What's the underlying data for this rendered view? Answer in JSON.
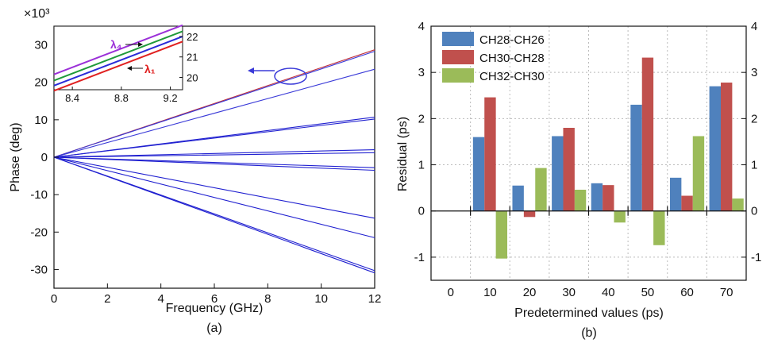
{
  "chart_data": [
    {
      "type": "line",
      "panel_label": "(a)",
      "xlabel": "Frequency (GHz)",
      "ylabel": "Phase (deg)",
      "xlim": [
        0,
        12
      ],
      "ylim": [
        -35,
        35
      ],
      "y_multiplier": "×10³",
      "xticks": [
        0,
        2,
        4,
        6,
        8,
        10,
        12
      ],
      "yticks": [
        -30,
        -20,
        -10,
        0,
        10,
        20,
        30
      ],
      "xtick_labels": [
        "0",
        "2",
        "4",
        "6",
        "8",
        "10",
        "12"
      ],
      "ytick_labels": [
        "-30",
        "-20",
        "-10",
        "0",
        "10",
        "20",
        "30"
      ],
      "series": [
        {
          "color": "#c0303a",
          "x": [
            0,
            12
          ],
          "y": [
            0,
            28.7
          ]
        },
        {
          "color": "#3a3ad8",
          "x": [
            0,
            12
          ],
          "y": [
            0,
            28.3
          ]
        },
        {
          "color": "#3a3ad8",
          "x": [
            0,
            12
          ],
          "y": [
            0,
            23.5
          ]
        },
        {
          "color": "#2020d0",
          "x": [
            0,
            12
          ],
          "y": [
            0,
            10.7
          ]
        },
        {
          "color": "#2020d0",
          "x": [
            0,
            12
          ],
          "y": [
            0,
            10.2
          ]
        },
        {
          "color": "#2020d0",
          "x": [
            0,
            12
          ],
          "y": [
            0,
            2.0
          ]
        },
        {
          "color": "#2020d0",
          "x": [
            0,
            12
          ],
          "y": [
            0,
            1.2
          ]
        },
        {
          "color": "#2020d0",
          "x": [
            0,
            12
          ],
          "y": [
            0,
            -2.8
          ]
        },
        {
          "color": "#2020d0",
          "x": [
            0,
            12
          ],
          "y": [
            0,
            -3.5
          ]
        },
        {
          "color": "#2020d0",
          "x": [
            0,
            12
          ],
          "y": [
            0,
            -16.3
          ]
        },
        {
          "color": "#2020d0",
          "x": [
            0,
            12
          ],
          "y": [
            0,
            -21.5
          ]
        },
        {
          "color": "#2020d0",
          "x": [
            0,
            12
          ],
          "y": [
            0,
            -30.3
          ]
        },
        {
          "color": "#2020d0",
          "x": [
            0,
            12
          ],
          "y": [
            0,
            -30.9
          ]
        }
      ],
      "inset": {
        "xlim": [
          8.25,
          9.3
        ],
        "ylim": [
          19.4,
          22.5
        ],
        "xtick_labels": [
          "8.4",
          "8.8",
          "9.2"
        ],
        "xticks": [
          8.4,
          8.8,
          9.2
        ],
        "ytick_labels": [
          "20",
          "21",
          "22"
        ],
        "yticks": [
          20,
          21,
          22
        ],
        "series": [
          {
            "color": "#9b30d8",
            "x": [
              8.25,
              9.3
            ],
            "y": [
              20.15,
              22.55
            ]
          },
          {
            "color": "#1f9a3a",
            "x": [
              8.25,
              9.3
            ],
            "y": [
              19.85,
              22.25
            ]
          },
          {
            "color": "#2a2ad8",
            "x": [
              8.25,
              9.3
            ],
            "y": [
              19.6,
              22.0
            ]
          },
          {
            "color": "#e02020",
            "x": [
              8.25,
              9.3
            ],
            "y": [
              19.35,
              21.75
            ]
          }
        ],
        "labels": [
          {
            "text": "λ₄",
            "color": "#9b30d8"
          },
          {
            "text": "λ₁",
            "color": "#e02020"
          }
        ]
      }
    },
    {
      "type": "bar",
      "panel_label": "(b)",
      "xlabel": "Predetermined values (ps)",
      "ylabel": "Residual (ps)",
      "ylim": [
        -1.5,
        4
      ],
      "yticks": [
        -1,
        0,
        1,
        2,
        3,
        4
      ],
      "ytick_labels": [
        "-1",
        "0",
        "1",
        "2",
        "3",
        "4"
      ],
      "right_ytick_labels": [
        "-1",
        "0",
        "1",
        "2",
        "3",
        "4"
      ],
      "categories": [
        "0",
        "10",
        "20",
        "30",
        "40",
        "50",
        "60",
        "70"
      ],
      "series": [
        {
          "name": "CH28-CH26",
          "color": "#4f81bd",
          "values": [
            null,
            1.6,
            0.55,
            1.62,
            0.6,
            2.3,
            0.72,
            2.7
          ]
        },
        {
          "name": "CH30-CH28",
          "color": "#c0504d",
          "values": [
            null,
            2.46,
            -0.13,
            1.8,
            0.56,
            3.32,
            0.33,
            2.78
          ]
        },
        {
          "name": "CH32-CH30",
          "color": "#9bbb59",
          "values": [
            null,
            -1.03,
            0.93,
            0.46,
            -0.25,
            -0.74,
            1.62,
            0.27
          ]
        }
      ],
      "legend": "top-left",
      "grid": true
    }
  ]
}
